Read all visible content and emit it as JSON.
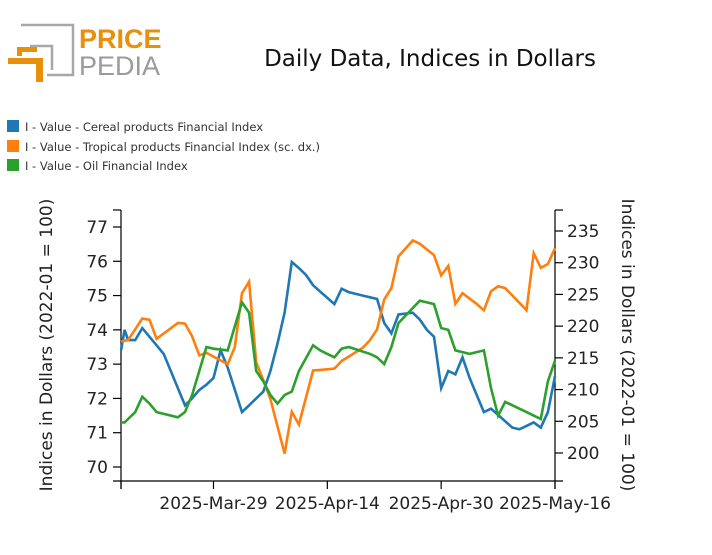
{
  "logo": {
    "line1": "PRICE",
    "line2": "PEDIA",
    "accent_color": "#e8900c",
    "gray_color": "#9a9a9a"
  },
  "chart_data": {
    "type": "line",
    "title": "Daily Data, Indices in Dollars",
    "ylabel_left": "Indices in Dollars (2022-01 = 100)",
    "ylabel_right": "Indices in Dollars (2022-01 = 100)",
    "xlabel": "",
    "x_start": "2025-03-16",
    "x_end": "2025-05-16",
    "x_ticks": [
      "2025-Mar-29",
      "2025-Apr-14",
      "2025-Apr-30",
      "2025-May-16"
    ],
    "x_tick_days": [
      13,
      29,
      45,
      61
    ],
    "xlim_days": [
      0,
      61
    ],
    "ylim_left": [
      69.6,
      77.5
    ],
    "ylim_right": [
      195.5,
      237.5
    ],
    "yticks_left": [
      70,
      71,
      72,
      73,
      74,
      75,
      76,
      77
    ],
    "yticks_right": [
      200,
      205,
      210,
      215,
      220,
      225,
      230,
      235
    ],
    "grid": false,
    "legend_position": "top-left",
    "series": [
      {
        "name": "I - Value - Cereal products Financial Index",
        "axis": "left",
        "color": "#1f77b4",
        "x": [
          0,
          0.5,
          1,
          2,
          3,
          6,
          9,
          10,
          11,
          12,
          13,
          14,
          15,
          17,
          18,
          19,
          20,
          21,
          22,
          23,
          24,
          25,
          26,
          27,
          30,
          31,
          32,
          33,
          34,
          35,
          36,
          37,
          38,
          39,
          41,
          42,
          43,
          44,
          45,
          46,
          47,
          48,
          49,
          50,
          51,
          52,
          55,
          56,
          57,
          58,
          59,
          60,
          61
        ],
        "values": [
          73.4,
          74.0,
          73.7,
          73.7,
          74.05,
          73.3,
          71.8,
          72.0,
          72.25,
          72.4,
          72.6,
          73.4,
          72.9,
          71.6,
          71.8,
          72.0,
          72.2,
          72.8,
          73.6,
          74.5,
          75.98,
          75.8,
          75.6,
          75.3,
          74.75,
          75.2,
          75.1,
          75.05,
          75.0,
          74.95,
          74.9,
          74.2,
          73.9,
          74.45,
          74.5,
          74.3,
          74.0,
          73.8,
          72.3,
          72.8,
          72.7,
          73.2,
          72.6,
          72.1,
          71.6,
          71.7,
          71.15,
          71.1,
          71.2,
          71.3,
          71.15,
          71.6,
          72.65
        ]
      },
      {
        "name": "I - Value - Tropical products Financial Index (sc. dx.)",
        "axis": "right",
        "color": "#ff7f0e",
        "x": [
          0,
          1,
          2,
          3,
          4,
          5,
          8,
          9,
          10,
          11,
          12,
          15,
          16,
          17,
          18,
          19,
          20,
          21,
          22,
          23,
          24,
          25,
          27,
          28,
          29,
          30,
          31,
          32,
          34,
          35,
          36,
          37,
          38,
          39,
          41,
          42,
          44,
          45,
          46,
          47,
          48,
          50,
          51,
          52,
          53,
          54,
          57,
          58,
          59,
          60,
          61
        ],
        "values": [
          217.6,
          217.8,
          219.5,
          221.2,
          221.0,
          218.0,
          220.5,
          220.4,
          218.4,
          215.4,
          215.8,
          214.0,
          216.7,
          225.2,
          227.0,
          214.3,
          211.5,
          208.5,
          204.2,
          199.9,
          206.5,
          204.5,
          213.0,
          213.1,
          213.2,
          213.3,
          214.5,
          215.2,
          216.6,
          217.8,
          219.5,
          224.2,
          226.0,
          231.0,
          233.5,
          233.0,
          231.2,
          228.0,
          229.5,
          223.5,
          225.2,
          223.5,
          222.5,
          225.5,
          226.3,
          226.0,
          222.5,
          231.5,
          229.2,
          229.8,
          232.3
        ]
      },
      {
        "name": "I - Value - Oil Financial Index",
        "axis": "left",
        "color": "#2ca02c",
        "x": [
          0,
          0.5,
          1,
          2,
          3,
          4,
          5,
          8,
          9,
          10,
          11,
          12,
          13,
          15,
          16,
          17,
          18,
          19,
          20,
          21,
          22,
          23,
          24,
          25,
          27,
          28,
          29,
          30,
          31,
          32,
          35,
          36,
          37,
          38,
          39,
          42,
          43,
          44,
          45,
          46,
          47,
          49,
          50,
          51,
          52,
          53,
          54,
          57,
          58,
          59,
          60,
          61
        ],
        "values": [
          71.3,
          71.3,
          71.4,
          71.6,
          72.05,
          71.85,
          71.6,
          71.45,
          71.6,
          72.1,
          72.8,
          73.5,
          73.45,
          73.4,
          74.1,
          74.8,
          74.5,
          72.8,
          72.5,
          72.1,
          71.85,
          72.1,
          72.2,
          72.8,
          73.55,
          73.4,
          73.3,
          73.2,
          73.45,
          73.5,
          73.3,
          73.2,
          73.0,
          73.5,
          74.2,
          74.85,
          74.8,
          74.75,
          74.05,
          74.0,
          73.4,
          73.3,
          73.35,
          73.4,
          72.3,
          71.5,
          71.9,
          71.6,
          71.5,
          71.4,
          72.5,
          73.1
        ]
      }
    ]
  }
}
